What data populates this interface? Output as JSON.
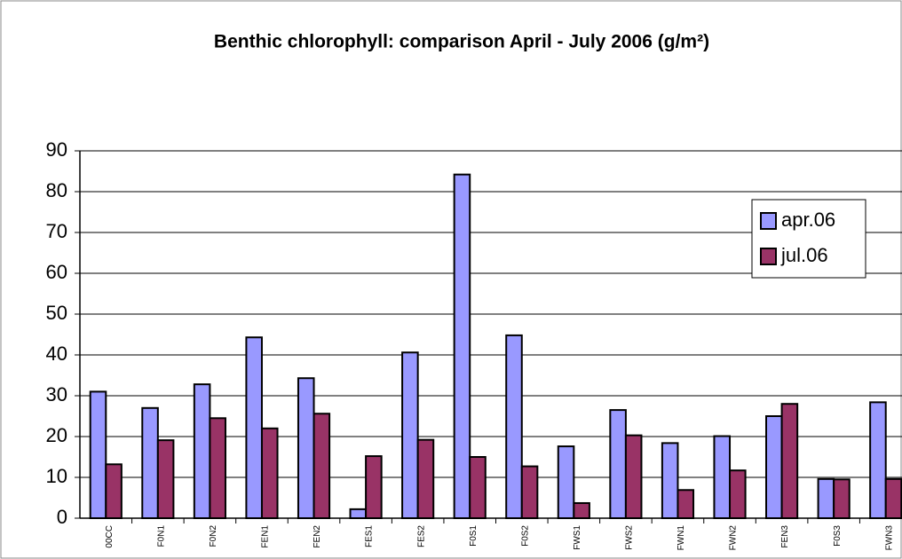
{
  "chart_data": {
    "type": "bar",
    "title": "Benthic chlorophyll: comparison April - July 2006 (g/m²)",
    "categories": [
      "00CC",
      "F0N1",
      "F0N2",
      "FEN1",
      "FEN2",
      "FES1",
      "FES2",
      "F0S1",
      "F0S2",
      "FWS1",
      "FWS2",
      "FWN1",
      "FWN2",
      "FEN3",
      "F0S3",
      "FWN3"
    ],
    "series": [
      {
        "name": "apr.06",
        "color": "#9999ff",
        "values": [
          31,
          27,
          32.8,
          44.3,
          34.3,
          2.2,
          40.6,
          84.2,
          44.8,
          17.6,
          26.5,
          18.4,
          20.1,
          25,
          9.6,
          28.4
        ]
      },
      {
        "name": "jul.06",
        "color": "#993366",
        "values": [
          13.2,
          19.1,
          24.5,
          22,
          25.6,
          15.2,
          19.2,
          15,
          12.7,
          3.7,
          20.3,
          6.9,
          11.7,
          28,
          9.5,
          9.6
        ]
      }
    ],
    "ylim": [
      0,
      90
    ],
    "yticks": [
      0,
      10,
      20,
      30,
      40,
      50,
      60,
      70,
      80,
      90
    ],
    "grid": true,
    "legend": "right"
  }
}
